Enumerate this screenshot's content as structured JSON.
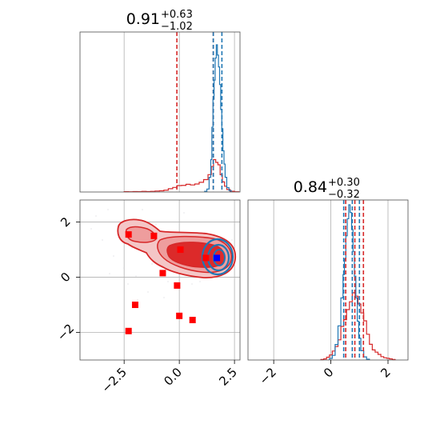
{
  "colors": {
    "red": "#d62728",
    "blue": "#1f77b4",
    "square_red": "#ff0000",
    "square_blue": "#0000ff",
    "grid": "#b0b0b0",
    "axis": "#4d4d4d"
  },
  "chart_data": [
    {
      "type": "area",
      "panel": "top-left histogram",
      "title": {
        "value": "0.91",
        "upper": "+0.63",
        "lower": "−1.02"
      },
      "xlim": [
        -4.5,
        2.75
      ],
      "grid": true,
      "quantile_lines": {
        "red": [
          -0.11,
          1.54
        ],
        "blue": [
          1.54,
          1.93
        ]
      },
      "series": [
        {
          "color": "red",
          "x": [
            -2.4,
            -2.2,
            -2.0,
            -1.8,
            -1.6,
            -1.4,
            -1.2,
            -1.0,
            -0.8,
            -0.6,
            -0.4,
            -0.2,
            0.0,
            0.2,
            0.4,
            0.6,
            0.8,
            1.0,
            1.2,
            1.4,
            1.5,
            1.6,
            1.7,
            1.8,
            1.9,
            2.0,
            2.1,
            2.2,
            2.4,
            2.6
          ],
          "values": [
            0.5,
            0.3,
            0.6,
            0.5,
            0.9,
            0.6,
            0.9,
            1.3,
            1.7,
            2.5,
            4.6,
            6.3,
            8.9,
            9.2,
            10.7,
            9.8,
            11.1,
            13.5,
            17.2,
            24.1,
            35.5,
            45.0,
            41.1,
            37.8,
            24.0,
            14.0,
            8.0,
            3.5,
            1.0,
            0.3
          ]
        },
        {
          "color": "blue",
          "x": [
            1.2,
            1.3,
            1.4,
            1.45,
            1.5,
            1.55,
            1.6,
            1.65,
            1.7,
            1.75,
            1.8,
            1.85,
            1.9,
            1.95,
            2.0,
            2.05,
            2.1,
            2.2,
            2.3
          ],
          "values": [
            0.5,
            2.0,
            10.0,
            22.0,
            44.0,
            63.0,
            76.0,
            91.0,
            100.0,
            93.0,
            85.0,
            73.0,
            56.0,
            43.0,
            28.0,
            19.0,
            10.0,
            3.0,
            1.0
          ]
        }
      ]
    },
    {
      "type": "scatter",
      "panel": "bottom-left 2d density",
      "xlim": [
        -4.5,
        2.75
      ],
      "ylim": [
        -3.0,
        2.8
      ],
      "grid": true,
      "x_ticks": [
        "−2.5",
        "0.0",
        "2.5"
      ],
      "y_ticks": [
        "−2",
        "0",
        "2"
      ],
      "red_points": [
        [
          -2.3,
          1.55
        ],
        [
          -1.15,
          1.5
        ],
        [
          0.05,
          1.0
        ],
        [
          1.2,
          0.7
        ],
        [
          -0.75,
          0.15
        ],
        [
          -0.1,
          -0.3
        ],
        [
          -2.0,
          -1.0
        ],
        [
          0.0,
          -1.4
        ],
        [
          0.6,
          -1.55
        ],
        [
          -2.3,
          -1.95
        ]
      ],
      "blue_point": [
        1.7,
        0.7
      ]
    },
    {
      "type": "area",
      "panel": "bottom-right histogram",
      "title": {
        "value": "0.84",
        "upper": "+0.30",
        "lower": "−0.32"
      },
      "xlim": [
        -2.9,
        2.7
      ],
      "grid": true,
      "x_ticks": [
        "−2",
        "0",
        "2"
      ],
      "quantile_lines": {
        "red": [
          0.52,
          0.84,
          1.14
        ],
        "blue": [
          0.45,
          0.75,
          1.0
        ]
      },
      "series": [
        {
          "color": "red",
          "x": [
            -0.3,
            -0.2,
            -0.1,
            0.0,
            0.1,
            0.2,
            0.3,
            0.4,
            0.5,
            0.6,
            0.7,
            0.8,
            0.9,
            1.0,
            1.1,
            1.2,
            1.3,
            1.4,
            1.5,
            1.6,
            1.7,
            1.8,
            1.9,
            2.0,
            2.1,
            2.2
          ],
          "values": [
            0.5,
            1.0,
            2.5,
            4.5,
            8.0,
            12.0,
            18.0,
            30.0,
            36.0,
            45.0,
            52.0,
            60.0,
            57.0,
            50.0,
            42.0,
            35.0,
            23.0,
            14.0,
            9.0,
            7.0,
            5.0,
            3.0,
            2.0,
            1.5,
            1.0,
            0.5
          ]
        },
        {
          "color": "blue",
          "x": [
            0.0,
            0.1,
            0.2,
            0.3,
            0.4,
            0.45,
            0.5,
            0.55,
            0.6,
            0.65,
            0.7,
            0.75,
            0.8,
            0.85,
            0.9,
            0.95,
            1.0,
            1.1,
            1.2,
            1.3
          ],
          "values": [
            1.0,
            3.0,
            10.0,
            22.0,
            40.0,
            55.0,
            65.0,
            80.0,
            91.0,
            100.0,
            95.0,
            84.0,
            70.0,
            54.0,
            40.0,
            25.0,
            14.0,
            6.0,
            2.0,
            0.5
          ]
        }
      ]
    }
  ]
}
